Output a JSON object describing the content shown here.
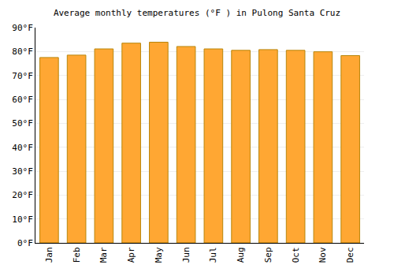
{
  "chart_data": {
    "type": "bar",
    "title": "Average monthly temperatures (°F ) in Pulong Santa Cruz",
    "categories": [
      "Jan",
      "Feb",
      "Mar",
      "Apr",
      "May",
      "Jun",
      "Jul",
      "Aug",
      "Sep",
      "Oct",
      "Nov",
      "Dec"
    ],
    "values": [
      77.5,
      78.5,
      81.1,
      83.5,
      83.9,
      82.1,
      81.1,
      80.5,
      80.8,
      80.5,
      79.9,
      78.3
    ],
    "color": "#ffa733",
    "ylim": [
      0,
      90
    ],
    "yticks": [
      {
        "value": 0,
        "label": "0°F"
      },
      {
        "value": 10,
        "label": "10°F"
      },
      {
        "value": 20,
        "label": "20°F"
      },
      {
        "value": 30,
        "label": "30°F"
      },
      {
        "value": 40,
        "label": "40°F"
      },
      {
        "value": 50,
        "label": "50°F"
      },
      {
        "value": 60,
        "label": "60°F"
      },
      {
        "value": 70,
        "label": "70°F"
      },
      {
        "value": 80,
        "label": "80°F"
      },
      {
        "value": 90,
        "label": "90°F"
      }
    ],
    "grid": true
  }
}
